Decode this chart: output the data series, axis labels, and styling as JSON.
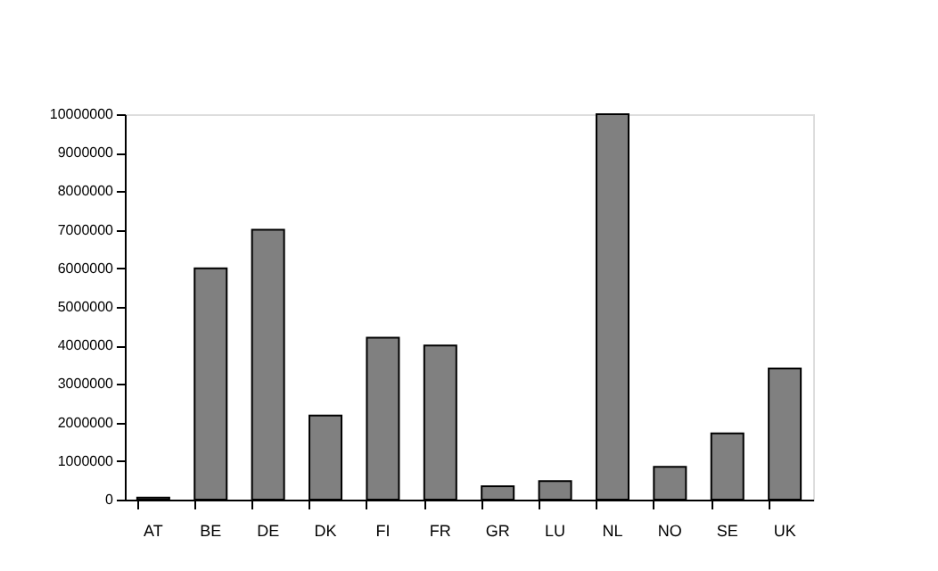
{
  "chart_data": {
    "type": "bar",
    "categories": [
      "AT",
      "BE",
      "DE",
      "DK",
      "FI",
      "FR",
      "GR",
      "LU",
      "NL",
      "NO",
      "SE",
      "UK"
    ],
    "values": [
      50000,
      6000000,
      7000000,
      2180000,
      4200000,
      4000000,
      350000,
      480000,
      10000000,
      850000,
      1720000,
      3400000
    ],
    "color": "#808080",
    "ylim": [
      0,
      10000000
    ],
    "yticks": [
      0,
      1000000,
      2000000,
      3000000,
      4000000,
      5000000,
      6000000,
      7000000,
      8000000,
      9000000,
      10000000
    ],
    "grid": false
  }
}
